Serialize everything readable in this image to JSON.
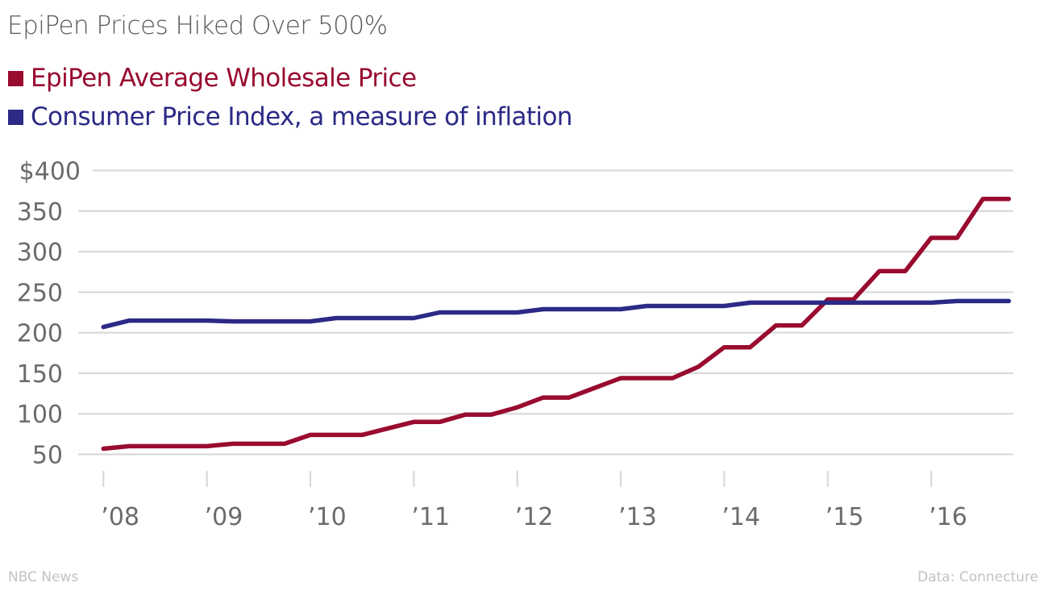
{
  "chart_data": {
    "type": "line",
    "title": "EpiPen Prices Hiked Over 500%",
    "xlabel": "",
    "ylabel": "",
    "ylim": [
      50,
      400
    ],
    "xlim": [
      2008.0,
      2016.75
    ],
    "grid": true,
    "legend_position": "top-left",
    "yticks": [
      400,
      350,
      300,
      250,
      200,
      150,
      100,
      50
    ],
    "ytick_labels": [
      "$400",
      "350",
      "300",
      "250",
      "200",
      "150",
      "100",
      "50"
    ],
    "xticks": [
      2008,
      2009,
      2010,
      2011,
      2012,
      2013,
      2014,
      2015,
      2016
    ],
    "xtick_labels": [
      "’08",
      "’09",
      "’10",
      "’11",
      "’12",
      "’13",
      "’14",
      "’15",
      "’16"
    ],
    "x": [
      2008.0,
      2008.25,
      2008.5,
      2008.75,
      2009.0,
      2009.25,
      2009.5,
      2009.75,
      2010.0,
      2010.25,
      2010.5,
      2010.75,
      2011.0,
      2011.25,
      2011.5,
      2011.75,
      2012.0,
      2012.25,
      2012.5,
      2012.75,
      2013.0,
      2013.25,
      2013.5,
      2013.75,
      2014.0,
      2014.25,
      2014.5,
      2014.75,
      2015.0,
      2015.25,
      2015.5,
      2015.75,
      2016.0,
      2016.25,
      2016.5,
      2016.75
    ],
    "series": [
      {
        "name": "EpiPen Average Wholesale Price",
        "color": "#990b2f",
        "values": [
          57,
          60,
          60,
          60,
          60,
          63,
          63,
          63,
          74,
          74,
          74,
          82,
          90,
          90,
          99,
          99,
          108,
          120,
          120,
          132,
          144,
          144,
          144,
          158,
          182,
          182,
          209,
          209,
          241,
          241,
          276,
          276,
          317,
          317,
          365,
          365
        ]
      },
      {
        "name": "Consumer Price Index, a measure of inflation",
        "color": "#2b2a86",
        "values": [
          207,
          215,
          215,
          215,
          215,
          214,
          214,
          214,
          214,
          218,
          218,
          218,
          218,
          225,
          225,
          225,
          225,
          229,
          229,
          229,
          229,
          233,
          233,
          233,
          233,
          237,
          237,
          237,
          237,
          237,
          237,
          237,
          237,
          239,
          239,
          239
        ]
      }
    ]
  },
  "footer": {
    "source_left": "NBC News",
    "source_right": "Data: Connecture"
  },
  "colors": {
    "title": "#595959",
    "grid": "#d6d6d6",
    "axis_text": "#6b6b6b"
  }
}
